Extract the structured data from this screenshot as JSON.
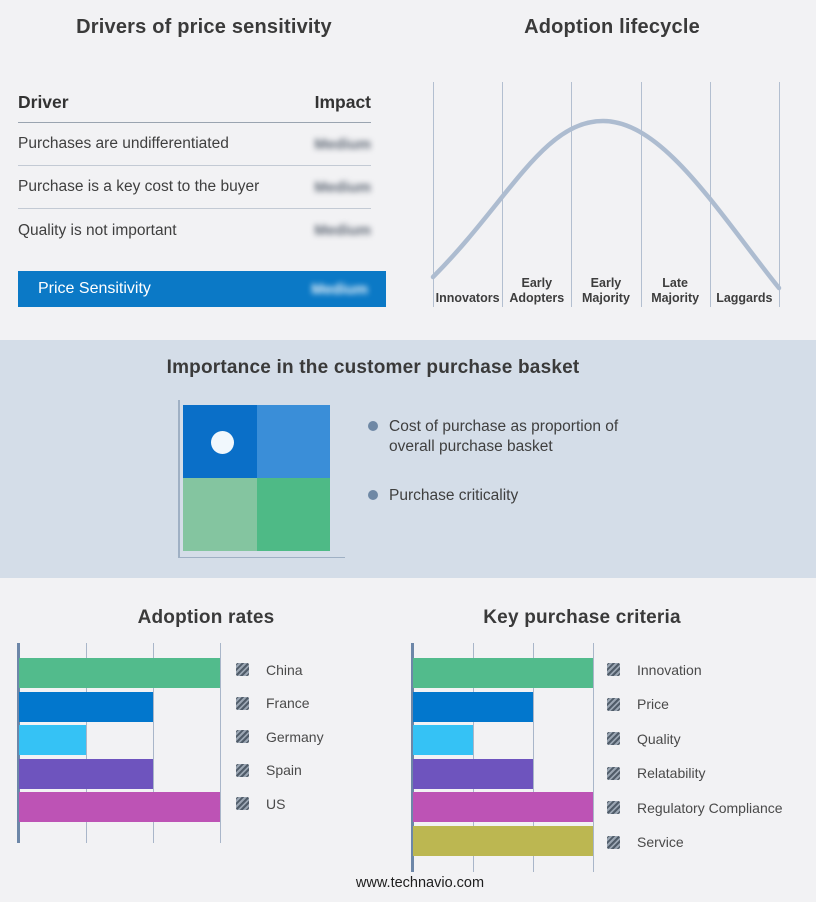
{
  "page": {
    "bg": "#f2f2f4",
    "band_bg": "#d4dde8"
  },
  "drivers": {
    "title": "Drivers of price sensitivity",
    "columns": {
      "driver": "Driver",
      "impact": "Impact"
    },
    "rows": [
      {
        "driver": "Purchases are undifferentiated",
        "impact": "Medium"
      },
      {
        "driver": "Purchase is a key cost to the buyer",
        "impact": "Medium"
      },
      {
        "driver": "Quality is not important",
        "impact": "Medium"
      }
    ],
    "summary": {
      "label": "Price Sensitivity",
      "impact": "Medium"
    },
    "summary_bg": "#0b79c6",
    "impact_redacted": true
  },
  "basket": {
    "title": "Importance in the customer purchase basket",
    "bullets": [
      "Cost of purchase as proportion of overall purchase basket",
      "Purchase criticality"
    ],
    "quadrant": {
      "top_left": "#0a6fc8",
      "top_right": "#3a8ed8",
      "bottom_left": "#84c5a0",
      "bottom_right": "#4eba86"
    },
    "dot_color": "#f1f8fd",
    "bullet_color": "#6f88a5"
  },
  "footer": {
    "url": "www.technavio.com"
  },
  "chart_data": [
    {
      "id": "adoption_lifecycle",
      "type": "line",
      "title": "Adoption lifecycle",
      "categories": [
        "Innovators",
        "Early Adopters",
        "Early Majority",
        "Late Majority",
        "Laggards"
      ],
      "curve_shape": "bell curve peaking in Early Majority",
      "curve_color": "#adbcd0",
      "grid": true
    },
    {
      "id": "adoption_rates",
      "type": "bar",
      "orientation": "horizontal",
      "title": "Adoption rates",
      "categories": [
        "China",
        "France",
        "Germany",
        "Spain",
        "US"
      ],
      "values": [
        3,
        2,
        1,
        2,
        3
      ],
      "xlim": [
        0,
        3
      ],
      "gridlines": 3,
      "colors": [
        "#52bb8c",
        "#0277cd",
        "#35c2f5",
        "#6e54be",
        "#bd53b5"
      ],
      "legend_position": "right"
    },
    {
      "id": "key_purchase_criteria",
      "type": "bar",
      "orientation": "horizontal",
      "title": "Key purchase criteria",
      "categories": [
        "Innovation",
        "Price",
        "Quality",
        "Relatability",
        "Regulatory Compliance",
        "Service"
      ],
      "values": [
        3,
        2,
        1,
        2,
        3,
        3
      ],
      "xlim": [
        0,
        3
      ],
      "gridlines": 3,
      "colors": [
        "#52bb8c",
        "#0277cd",
        "#35c2f5",
        "#6e54be",
        "#bd53b5",
        "#bcb751"
      ],
      "legend_position": "right"
    }
  ]
}
